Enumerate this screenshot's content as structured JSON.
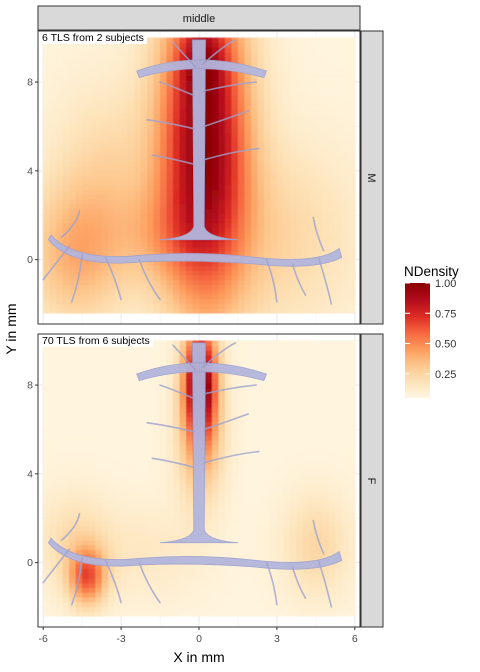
{
  "chart_data": {
    "type": "heatmap",
    "facet_column": "middle",
    "xlabel": "X in mm",
    "ylabel": "Y in mm",
    "xlim": [
      -6.2,
      6.2
    ],
    "ylim": [
      -2.9,
      10.3
    ],
    "xticks": [
      -6,
      -3,
      0,
      3,
      6
    ],
    "xtick_labels": [
      "-6",
      "-3",
      "0",
      "3",
      "6"
    ],
    "yticks": [
      0,
      4,
      8
    ],
    "ytick_labels": [
      "0",
      "4",
      "8"
    ],
    "density_extent": {
      "x": [
        -6,
        6
      ],
      "y": [
        -2.4,
        10
      ]
    },
    "legend": {
      "title": "NDensity",
      "ticks": [
        0.25,
        0.5,
        0.75,
        1.0
      ],
      "tick_labels": [
        "0.25",
        "0.50",
        "0.75",
        "1.00"
      ],
      "range": [
        0.05,
        1.0
      ],
      "colors": [
        "#fff7e3",
        "#fde2b7",
        "#fdc68c",
        "#fd9a5b",
        "#f5653f",
        "#db2b23",
        "#b10b1d",
        "#8b0000"
      ]
    },
    "panels": [
      {
        "row_label": "M",
        "annotation": "6 TLS from 2 subjects",
        "hotspots": [
          {
            "x": 0.2,
            "y": 5.5,
            "sx": 1.2,
            "sy": 5.2,
            "w": 0.95
          },
          {
            "x": 0.1,
            "y": 9.0,
            "sx": 0.6,
            "sy": 1.2,
            "w": 0.25
          },
          {
            "x": -4.8,
            "y": 0.2,
            "sx": 1.3,
            "sy": 2.2,
            "w": 0.3
          },
          {
            "x": -3.5,
            "y": 3.5,
            "sx": 1.5,
            "sy": 3.0,
            "w": 0.18
          },
          {
            "x": 3.0,
            "y": 1.0,
            "sx": 2.2,
            "sy": 3.0,
            "w": 0.18
          },
          {
            "x": -1.5,
            "y": 1.0,
            "sx": 1.2,
            "sy": 1.5,
            "w": 0.15
          }
        ]
      },
      {
        "row_label": "F",
        "annotation": "70 TLS from 6 subjects",
        "hotspots": [
          {
            "x": 0.05,
            "y": 8.3,
            "sx": 0.45,
            "sy": 1.7,
            "w": 1.0
          },
          {
            "x": 0.05,
            "y": 5.5,
            "sx": 0.6,
            "sy": 2.0,
            "w": 0.35
          },
          {
            "x": -4.3,
            "y": -0.6,
            "sx": 0.5,
            "sy": 0.9,
            "w": 0.55
          },
          {
            "x": -4.8,
            "y": 1.0,
            "sx": 1.0,
            "sy": 1.5,
            "w": 0.15
          },
          {
            "x": 4.5,
            "y": 0.8,
            "sx": 0.9,
            "sy": 1.6,
            "w": 0.18
          },
          {
            "x": -2.0,
            "y": 0.5,
            "sx": 1.5,
            "sy": 1.5,
            "w": 0.08
          }
        ]
      }
    ],
    "grid": true
  },
  "colors": {
    "strip_fill": "#d9d9d9",
    "panel_border": "#333333",
    "grid_major": "#ebebeb",
    "vessel_fill": "#b3b6dd",
    "vessel_stroke": "#9ea2cf"
  }
}
